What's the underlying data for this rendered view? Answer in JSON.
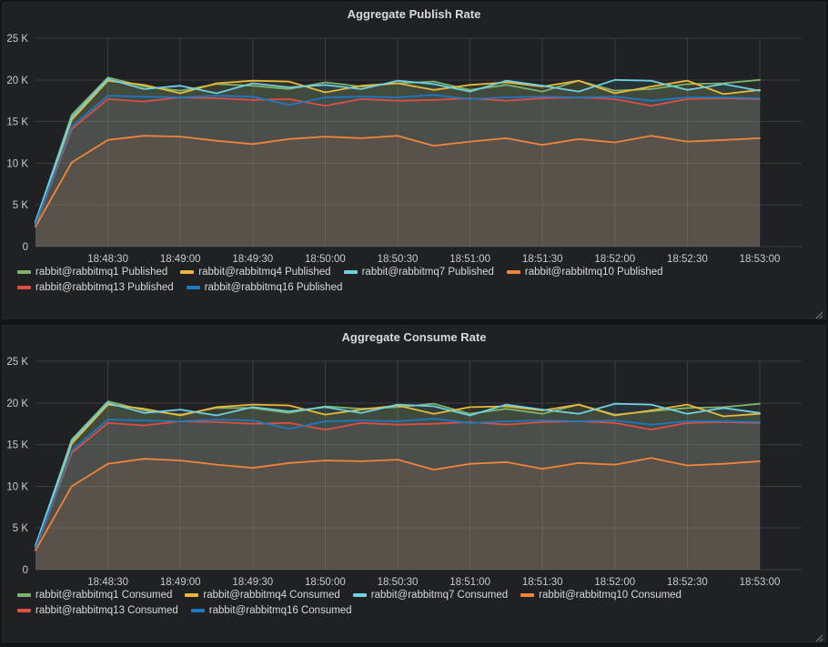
{
  "y_axis": {
    "tick_labels": [
      "0",
      "5 K",
      "10 K",
      "15 K",
      "20 K",
      "25 K"
    ],
    "max": 25000
  },
  "chart_data": [
    {
      "type": "line",
      "title": "Aggregate Publish Rate",
      "x": [
        "18:48:00",
        "18:48:15",
        "18:48:30",
        "18:48:45",
        "18:49:00",
        "18:49:15",
        "18:49:30",
        "18:49:45",
        "18:50:00",
        "18:50:15",
        "18:50:30",
        "18:50:45",
        "18:51:00",
        "18:51:15",
        "18:51:30",
        "18:51:45",
        "18:52:00",
        "18:52:15",
        "18:52:30",
        "18:52:45",
        "18:53:00"
      ],
      "x_tick_labels": [
        "18:48:30",
        "18:49:00",
        "18:49:30",
        "18:50:00",
        "18:50:30",
        "18:51:00",
        "18:51:30",
        "18:52:00",
        "18:52:30",
        "18:53:00"
      ],
      "ylim": [
        0,
        25000
      ],
      "y_tick_labels": [
        "0",
        "5 K",
        "10 K",
        "15 K",
        "20 K",
        "25 K"
      ],
      "grid": true,
      "legend_position": "bottom",
      "fill_opacity": 0.1,
      "series": [
        {
          "name": "rabbit@rabbitmq1 Published",
          "color": "#7EB26D",
          "values": [
            2900,
            15800,
            20300,
            19200,
            18700,
            19500,
            19300,
            18900,
            19700,
            19200,
            19600,
            19800,
            18800,
            19400,
            18600,
            19900,
            18700,
            18900,
            19500,
            19600,
            20000
          ]
        },
        {
          "name": "rabbit@rabbitmq4 Published",
          "color": "#EAB839",
          "values": [
            2800,
            15200,
            19900,
            19400,
            18400,
            19600,
            19900,
            19800,
            18500,
            19300,
            19600,
            18800,
            19400,
            19700,
            19200,
            19900,
            18400,
            19200,
            19900,
            18300,
            18800
          ]
        },
        {
          "name": "rabbit@rabbitmq7 Published",
          "color": "#6ED0E0",
          "values": [
            3000,
            15500,
            20100,
            18900,
            19300,
            18400,
            19600,
            19100,
            19400,
            18900,
            19900,
            19500,
            18600,
            19900,
            19300,
            18600,
            20000,
            19900,
            18800,
            19500,
            18700
          ]
        },
        {
          "name": "rabbit@rabbitmq10 Published",
          "color": "#EF843C",
          "values": [
            2400,
            10100,
            12800,
            13300,
            13200,
            12700,
            12300,
            12900,
            13200,
            13000,
            13300,
            12100,
            12600,
            13000,
            12200,
            12900,
            12500,
            13300,
            12600,
            12800,
            13000
          ]
        },
        {
          "name": "rabbit@rabbitmq13 Published",
          "color": "#E24D42",
          "values": [
            2600,
            14100,
            17700,
            17400,
            17900,
            17800,
            17600,
            17700,
            16900,
            17700,
            17500,
            17600,
            17800,
            17500,
            17800,
            17900,
            17700,
            16900,
            17700,
            17800,
            17700
          ]
        },
        {
          "name": "rabbit@rabbitmq16 Published",
          "color": "#1F78C1",
          "values": [
            2700,
            14400,
            18100,
            18000,
            17900,
            18100,
            18000,
            17000,
            17900,
            18000,
            17900,
            18200,
            17700,
            17900,
            18000,
            17900,
            18000,
            17500,
            17900,
            17900,
            17800
          ]
        }
      ]
    },
    {
      "type": "line",
      "title": "Aggregate Consume Rate",
      "x": [
        "18:48:00",
        "18:48:15",
        "18:48:30",
        "18:48:45",
        "18:49:00",
        "18:49:15",
        "18:49:30",
        "18:49:45",
        "18:50:00",
        "18:50:15",
        "18:50:30",
        "18:50:45",
        "18:51:00",
        "18:51:15",
        "18:51:30",
        "18:51:45",
        "18:52:00",
        "18:52:15",
        "18:52:30",
        "18:52:45",
        "18:53:00"
      ],
      "x_tick_labels": [
        "18:48:30",
        "18:49:00",
        "18:49:30",
        "18:50:00",
        "18:50:30",
        "18:51:00",
        "18:51:30",
        "18:52:00",
        "18:52:30",
        "18:53:00"
      ],
      "ylim": [
        0,
        25000
      ],
      "y_tick_labels": [
        "0",
        "5 K",
        "10 K",
        "15 K",
        "20 K",
        "25 K"
      ],
      "grid": true,
      "legend_position": "bottom",
      "fill_opacity": 0.1,
      "series": [
        {
          "name": "rabbit@rabbitmq1 Consumed",
          "color": "#7EB26D",
          "values": [
            2800,
            15600,
            20200,
            19100,
            18600,
            19400,
            19400,
            18800,
            19600,
            19300,
            19500,
            19900,
            18700,
            19300,
            18700,
            19800,
            18600,
            19000,
            19400,
            19500,
            19900
          ]
        },
        {
          "name": "rabbit@rabbitmq4 Consumed",
          "color": "#EAB839",
          "values": [
            2700,
            15100,
            19800,
            19300,
            18500,
            19500,
            19800,
            19700,
            18600,
            19200,
            19700,
            18700,
            19500,
            19600,
            19100,
            19800,
            18500,
            19100,
            19800,
            18400,
            18700
          ]
        },
        {
          "name": "rabbit@rabbitmq7 Consumed",
          "color": "#6ED0E0",
          "values": [
            2900,
            15400,
            20000,
            18800,
            19200,
            18500,
            19500,
            19000,
            19500,
            18800,
            19800,
            19600,
            18500,
            19800,
            19200,
            18700,
            19900,
            19800,
            18700,
            19400,
            18800
          ]
        },
        {
          "name": "rabbit@rabbitmq10 Consumed",
          "color": "#EF843C",
          "values": [
            2300,
            10000,
            12700,
            13300,
            13100,
            12600,
            12200,
            12800,
            13100,
            13000,
            13200,
            12000,
            12700,
            12900,
            12100,
            12800,
            12600,
            13400,
            12500,
            12700,
            13000
          ]
        },
        {
          "name": "rabbit@rabbitmq13 Consumed",
          "color": "#E24D42",
          "values": [
            2500,
            14000,
            17600,
            17300,
            17800,
            17700,
            17500,
            17600,
            16800,
            17600,
            17400,
            17500,
            17700,
            17400,
            17700,
            17800,
            17600,
            16800,
            17600,
            17700,
            17600
          ]
        },
        {
          "name": "rabbit@rabbitmq16 Consumed",
          "color": "#1F78C1",
          "values": [
            2600,
            14300,
            18000,
            17900,
            17800,
            18000,
            17900,
            16900,
            17800,
            17900,
            17800,
            18100,
            17600,
            17800,
            17900,
            17800,
            17900,
            17400,
            17800,
            17800,
            17700
          ]
        }
      ]
    }
  ]
}
